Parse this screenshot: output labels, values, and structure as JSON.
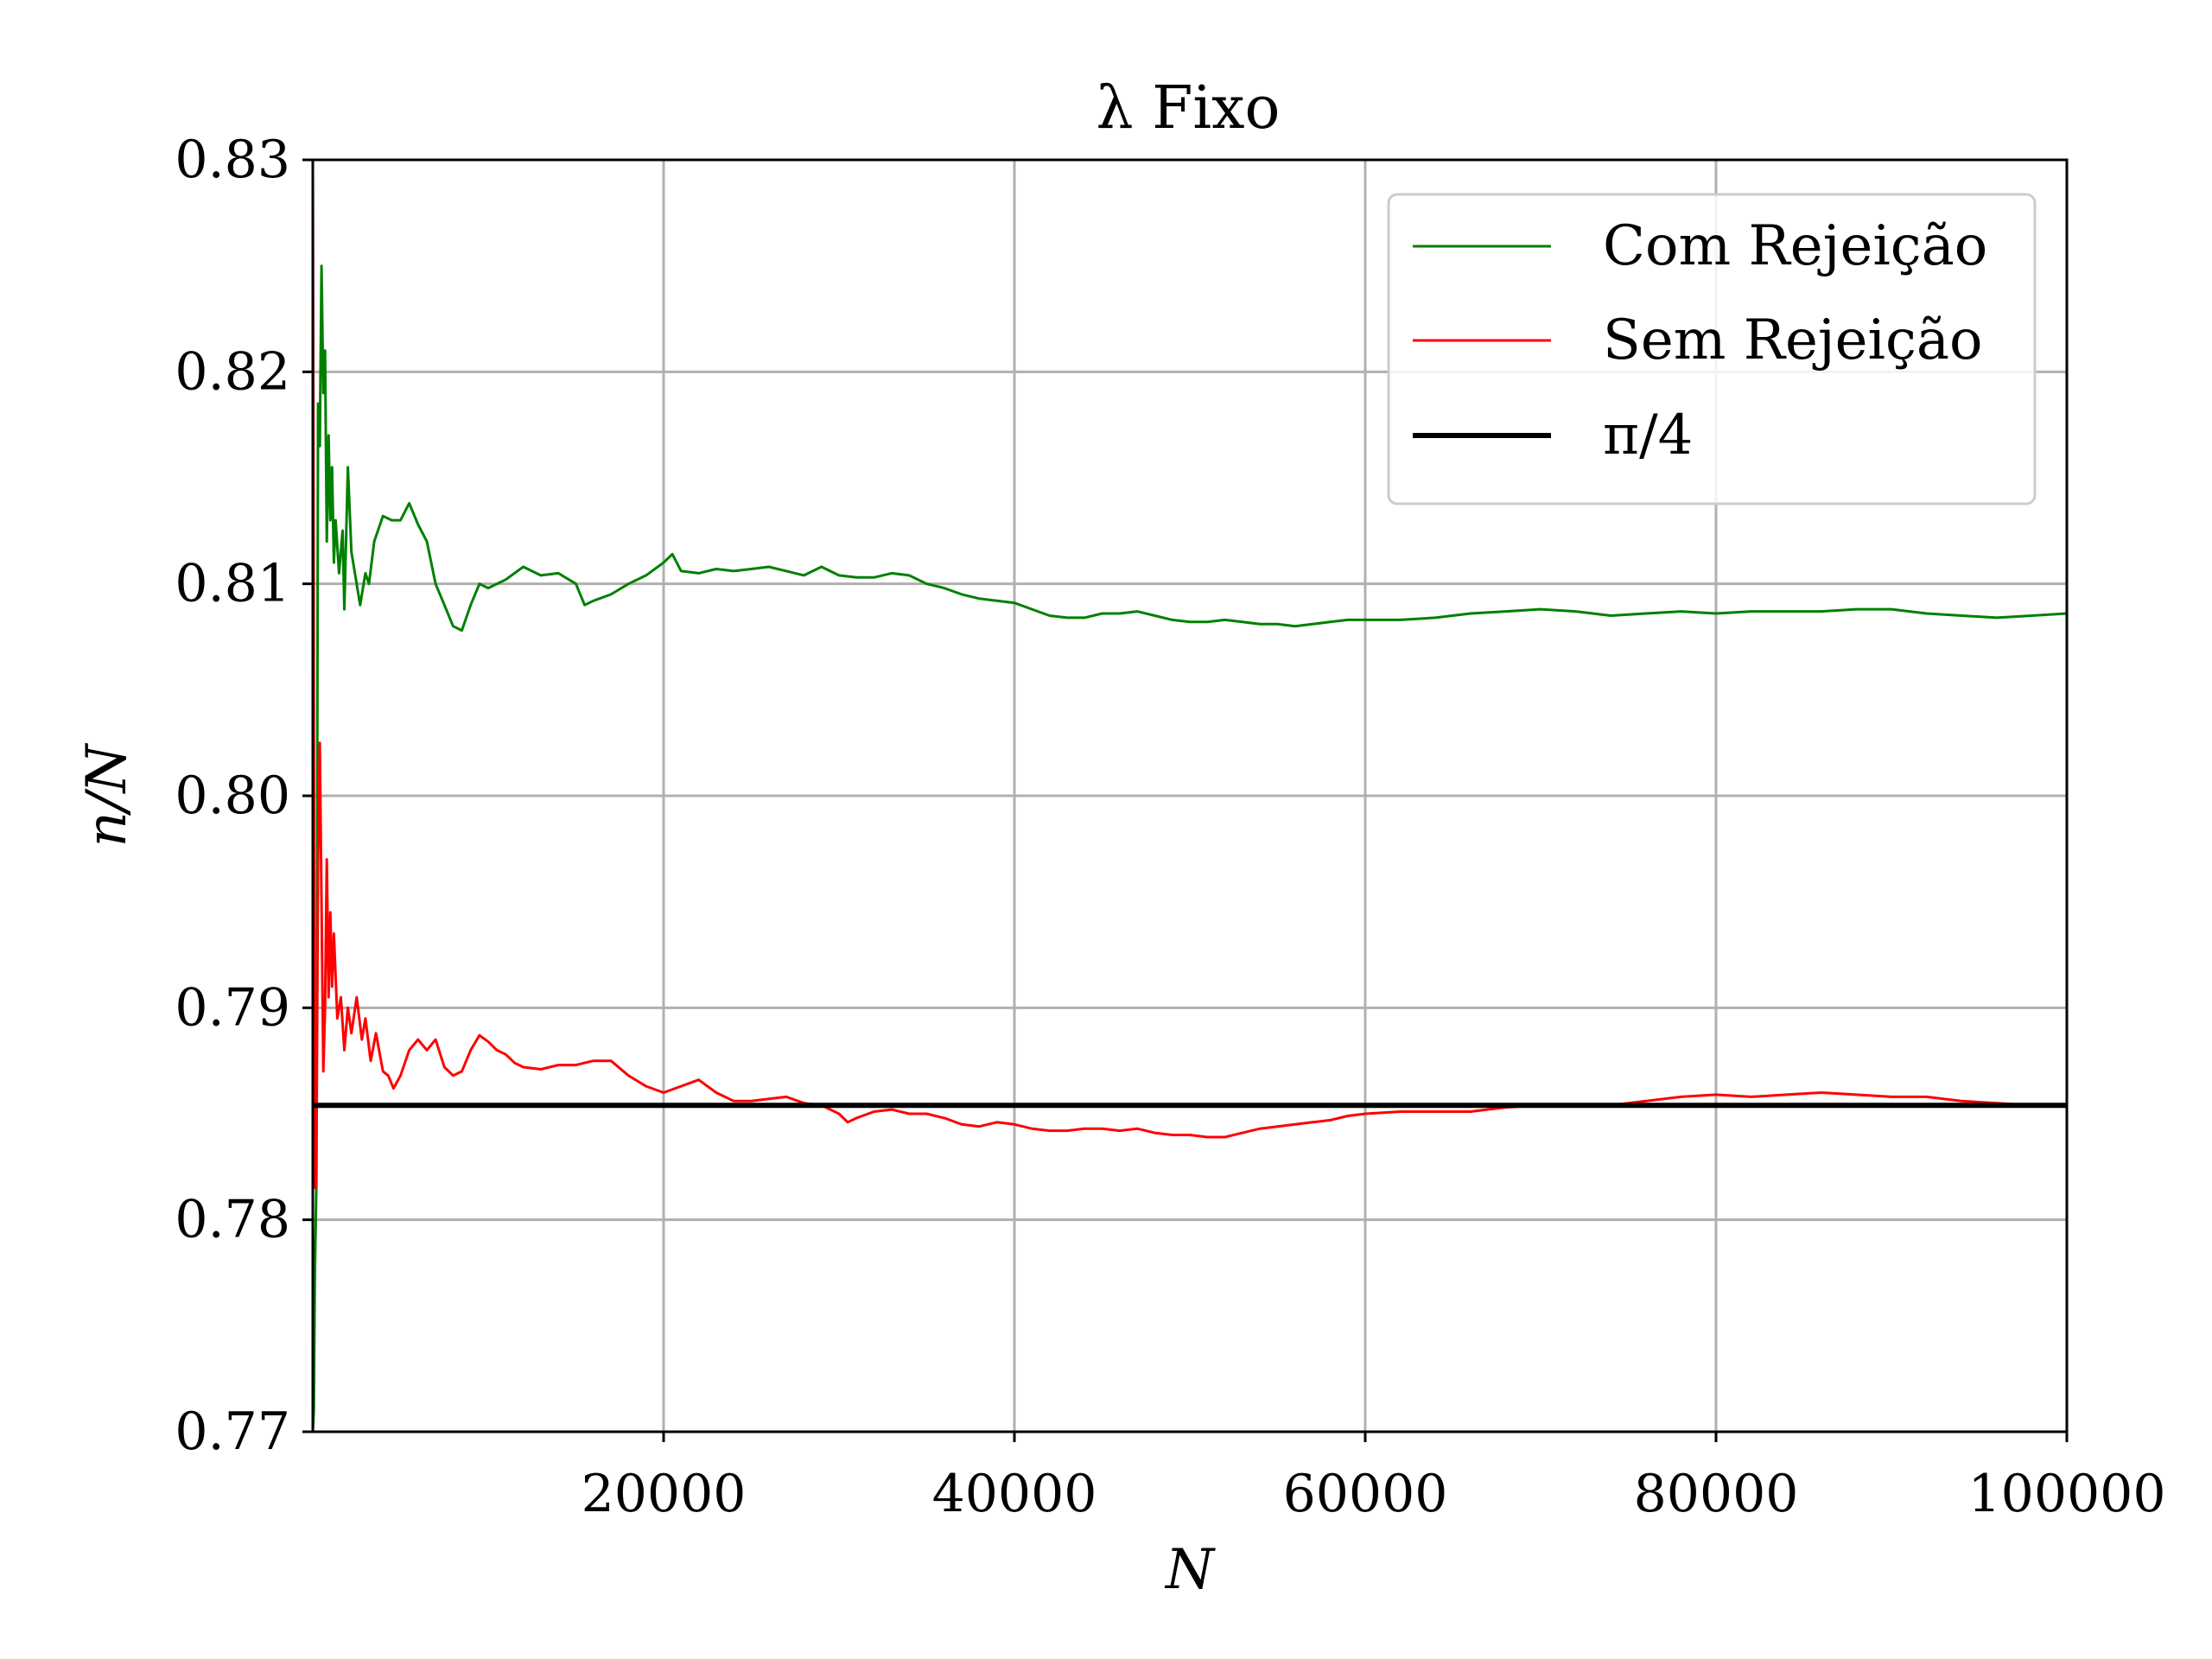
{
  "chart_data": {
    "type": "line",
    "title": "λ Fixo",
    "xlabel": "N",
    "ylabel": "n/N",
    "xlim": [
      0,
      100000
    ],
    "ylim": [
      0.77,
      0.83
    ],
    "x_ticks": [
      20000,
      40000,
      60000,
      80000,
      100000
    ],
    "x_tick_labels": [
      "20000",
      "40000",
      "60000",
      "80000",
      "100000"
    ],
    "y_ticks": [
      0.77,
      0.78,
      0.79,
      0.8,
      0.81,
      0.82,
      0.83
    ],
    "y_tick_labels": [
      "0.77",
      "0.78",
      "0.79",
      "0.80",
      "0.81",
      "0.82",
      "0.83"
    ],
    "grid": true,
    "legend": {
      "position": "top-right",
      "entries": [
        {
          "label": "Com Rejeição",
          "color": "#008000"
        },
        {
          "label": "Sem Rejeição",
          "color": "#ff0000"
        },
        {
          "label": "π/4",
          "color": "#000000"
        }
      ]
    },
    "series": [
      {
        "name": "Com Rejeição",
        "color": "#008000",
        "points": [
          [
            0,
            0.77
          ],
          [
            60,
            0.771
          ],
          [
            120,
            0.7775
          ],
          [
            200,
            0.7815
          ],
          [
            300,
            0.8185
          ],
          [
            400,
            0.8165
          ],
          [
            500,
            0.825
          ],
          [
            600,
            0.819
          ],
          [
            700,
            0.821
          ],
          [
            800,
            0.812
          ],
          [
            900,
            0.817
          ],
          [
            1000,
            0.813
          ],
          [
            1100,
            0.8155
          ],
          [
            1200,
            0.811
          ],
          [
            1300,
            0.813
          ],
          [
            1500,
            0.8105
          ],
          [
            1700,
            0.8125
          ],
          [
            1800,
            0.8088
          ],
          [
            2000,
            0.8155
          ],
          [
            2200,
            0.8115
          ],
          [
            2500,
            0.81
          ],
          [
            2700,
            0.809
          ],
          [
            3000,
            0.8105
          ],
          [
            3200,
            0.81
          ],
          [
            3500,
            0.812
          ],
          [
            4000,
            0.8132
          ],
          [
            4500,
            0.813
          ],
          [
            5000,
            0.813
          ],
          [
            5500,
            0.8138
          ],
          [
            6000,
            0.8128
          ],
          [
            6500,
            0.812
          ],
          [
            7000,
            0.81
          ],
          [
            7500,
            0.809
          ],
          [
            8000,
            0.808
          ],
          [
            8500,
            0.8078
          ],
          [
            9000,
            0.809
          ],
          [
            9500,
            0.81
          ],
          [
            10000,
            0.8098
          ],
          [
            11000,
            0.8102
          ],
          [
            12000,
            0.8108
          ],
          [
            13000,
            0.8104
          ],
          [
            14000,
            0.8105
          ],
          [
            15000,
            0.81
          ],
          [
            15500,
            0.809
          ],
          [
            16000,
            0.8092
          ],
          [
            17000,
            0.8095
          ],
          [
            18000,
            0.81
          ],
          [
            19000,
            0.8104
          ],
          [
            20000,
            0.811
          ],
          [
            20500,
            0.8114
          ],
          [
            21000,
            0.8106
          ],
          [
            22000,
            0.8105
          ],
          [
            23000,
            0.8107
          ],
          [
            24000,
            0.8106
          ],
          [
            25000,
            0.8107
          ],
          [
            26000,
            0.8108
          ],
          [
            27000,
            0.8106
          ],
          [
            28000,
            0.8104
          ],
          [
            29000,
            0.8108
          ],
          [
            30000,
            0.8104
          ],
          [
            31000,
            0.8103
          ],
          [
            32000,
            0.8103
          ],
          [
            33000,
            0.8105
          ],
          [
            34000,
            0.8104
          ],
          [
            35000,
            0.81
          ],
          [
            36000,
            0.8098
          ],
          [
            37000,
            0.8095
          ],
          [
            38000,
            0.8093
          ],
          [
            39000,
            0.8092
          ],
          [
            40000,
            0.8091
          ],
          [
            41000,
            0.8088
          ],
          [
            42000,
            0.8085
          ],
          [
            43000,
            0.8084
          ],
          [
            44000,
            0.8084
          ],
          [
            45000,
            0.8086
          ],
          [
            46000,
            0.8086
          ],
          [
            47000,
            0.8087
          ],
          [
            48000,
            0.8085
          ],
          [
            49000,
            0.8083
          ],
          [
            50000,
            0.8082
          ],
          [
            51000,
            0.8082
          ],
          [
            52000,
            0.8083
          ],
          [
            53000,
            0.8082
          ],
          [
            54000,
            0.8081
          ],
          [
            55000,
            0.8081
          ],
          [
            56000,
            0.808
          ],
          [
            57000,
            0.8081
          ],
          [
            58000,
            0.8082
          ],
          [
            59000,
            0.8083
          ],
          [
            60000,
            0.8083
          ],
          [
            62000,
            0.8083
          ],
          [
            64000,
            0.8084
          ],
          [
            66000,
            0.8086
          ],
          [
            68000,
            0.8087
          ],
          [
            70000,
            0.8088
          ],
          [
            72000,
            0.8087
          ],
          [
            74000,
            0.8085
          ],
          [
            76000,
            0.8086
          ],
          [
            78000,
            0.8087
          ],
          [
            80000,
            0.8086
          ],
          [
            82000,
            0.8087
          ],
          [
            84000,
            0.8087
          ],
          [
            86000,
            0.8087
          ],
          [
            88000,
            0.8088
          ],
          [
            90000,
            0.8088
          ],
          [
            92000,
            0.8086
          ],
          [
            94000,
            0.8085
          ],
          [
            96000,
            0.8084
          ],
          [
            98000,
            0.8085
          ],
          [
            100000,
            0.8086
          ]
        ]
      },
      {
        "name": "Sem Rejeição",
        "color": "#ff0000",
        "points": [
          [
            0,
            0.83
          ],
          [
            50,
            0.81
          ],
          [
            100,
            0.784
          ],
          [
            150,
            0.7815
          ],
          [
            200,
            0.782
          ],
          [
            300,
            0.797
          ],
          [
            400,
            0.8025
          ],
          [
            500,
            0.795
          ],
          [
            600,
            0.787
          ],
          [
            700,
            0.79
          ],
          [
            800,
            0.797
          ],
          [
            900,
            0.7905
          ],
          [
            1000,
            0.7945
          ],
          [
            1100,
            0.791
          ],
          [
            1200,
            0.7935
          ],
          [
            1400,
            0.7895
          ],
          [
            1600,
            0.7905
          ],
          [
            1800,
            0.788
          ],
          [
            2000,
            0.79
          ],
          [
            2200,
            0.7888
          ],
          [
            2500,
            0.7905
          ],
          [
            2800,
            0.7885
          ],
          [
            3000,
            0.7895
          ],
          [
            3300,
            0.7875
          ],
          [
            3600,
            0.7888
          ],
          [
            4000,
            0.787
          ],
          [
            4300,
            0.7868
          ],
          [
            4600,
            0.7862
          ],
          [
            5000,
            0.7868
          ],
          [
            5500,
            0.788
          ],
          [
            6000,
            0.7885
          ],
          [
            6500,
            0.788
          ],
          [
            7000,
            0.7885
          ],
          [
            7500,
            0.7872
          ],
          [
            8000,
            0.7868
          ],
          [
            8500,
            0.787
          ],
          [
            9000,
            0.788
          ],
          [
            9500,
            0.7887
          ],
          [
            10000,
            0.7884
          ],
          [
            10500,
            0.788
          ],
          [
            11000,
            0.7878
          ],
          [
            11500,
            0.7874
          ],
          [
            12000,
            0.7872
          ],
          [
            13000,
            0.7871
          ],
          [
            14000,
            0.7873
          ],
          [
            15000,
            0.7873
          ],
          [
            16000,
            0.7875
          ],
          [
            17000,
            0.7875
          ],
          [
            18000,
            0.7868
          ],
          [
            19000,
            0.7863
          ],
          [
            20000,
            0.786
          ],
          [
            21000,
            0.7863
          ],
          [
            22000,
            0.7866
          ],
          [
            23000,
            0.786
          ],
          [
            24000,
            0.7856
          ],
          [
            25000,
            0.7856
          ],
          [
            26000,
            0.7857
          ],
          [
            27000,
            0.7858
          ],
          [
            28000,
            0.7855
          ],
          [
            29000,
            0.7854
          ],
          [
            30000,
            0.785
          ],
          [
            30500,
            0.7846
          ],
          [
            31000,
            0.7848
          ],
          [
            32000,
            0.7851
          ],
          [
            33000,
            0.7852
          ],
          [
            34000,
            0.785
          ],
          [
            35000,
            0.785
          ],
          [
            36000,
            0.7848
          ],
          [
            37000,
            0.7845
          ],
          [
            38000,
            0.7844
          ],
          [
            39000,
            0.7846
          ],
          [
            40000,
            0.7845
          ],
          [
            41000,
            0.7843
          ],
          [
            42000,
            0.7842
          ],
          [
            43000,
            0.7842
          ],
          [
            44000,
            0.7843
          ],
          [
            45000,
            0.7843
          ],
          [
            46000,
            0.7842
          ],
          [
            47000,
            0.7843
          ],
          [
            48000,
            0.7841
          ],
          [
            49000,
            0.784
          ],
          [
            50000,
            0.784
          ],
          [
            51000,
            0.7839
          ],
          [
            52000,
            0.7839
          ],
          [
            53000,
            0.7841
          ],
          [
            54000,
            0.7843
          ],
          [
            55000,
            0.7844
          ],
          [
            56000,
            0.7845
          ],
          [
            57000,
            0.7846
          ],
          [
            58000,
            0.7847
          ],
          [
            59000,
            0.7849
          ],
          [
            60000,
            0.785
          ],
          [
            62000,
            0.7851
          ],
          [
            64000,
            0.7851
          ],
          [
            66000,
            0.7851
          ],
          [
            68000,
            0.7853
          ],
          [
            70000,
            0.7854
          ],
          [
            72000,
            0.7854
          ],
          [
            74000,
            0.7854
          ],
          [
            76000,
            0.7856
          ],
          [
            78000,
            0.7858
          ],
          [
            80000,
            0.7859
          ],
          [
            82000,
            0.7858
          ],
          [
            84000,
            0.7859
          ],
          [
            86000,
            0.786
          ],
          [
            88000,
            0.7859
          ],
          [
            90000,
            0.7858
          ],
          [
            92000,
            0.7858
          ],
          [
            94000,
            0.7856
          ],
          [
            96000,
            0.7855
          ],
          [
            98000,
            0.7854
          ],
          [
            100000,
            0.7854
          ]
        ]
      },
      {
        "name": "π/4",
        "color": "#000000",
        "points": [
          [
            0,
            0.7853981634
          ],
          [
            100000,
            0.7853981634
          ]
        ]
      }
    ]
  }
}
